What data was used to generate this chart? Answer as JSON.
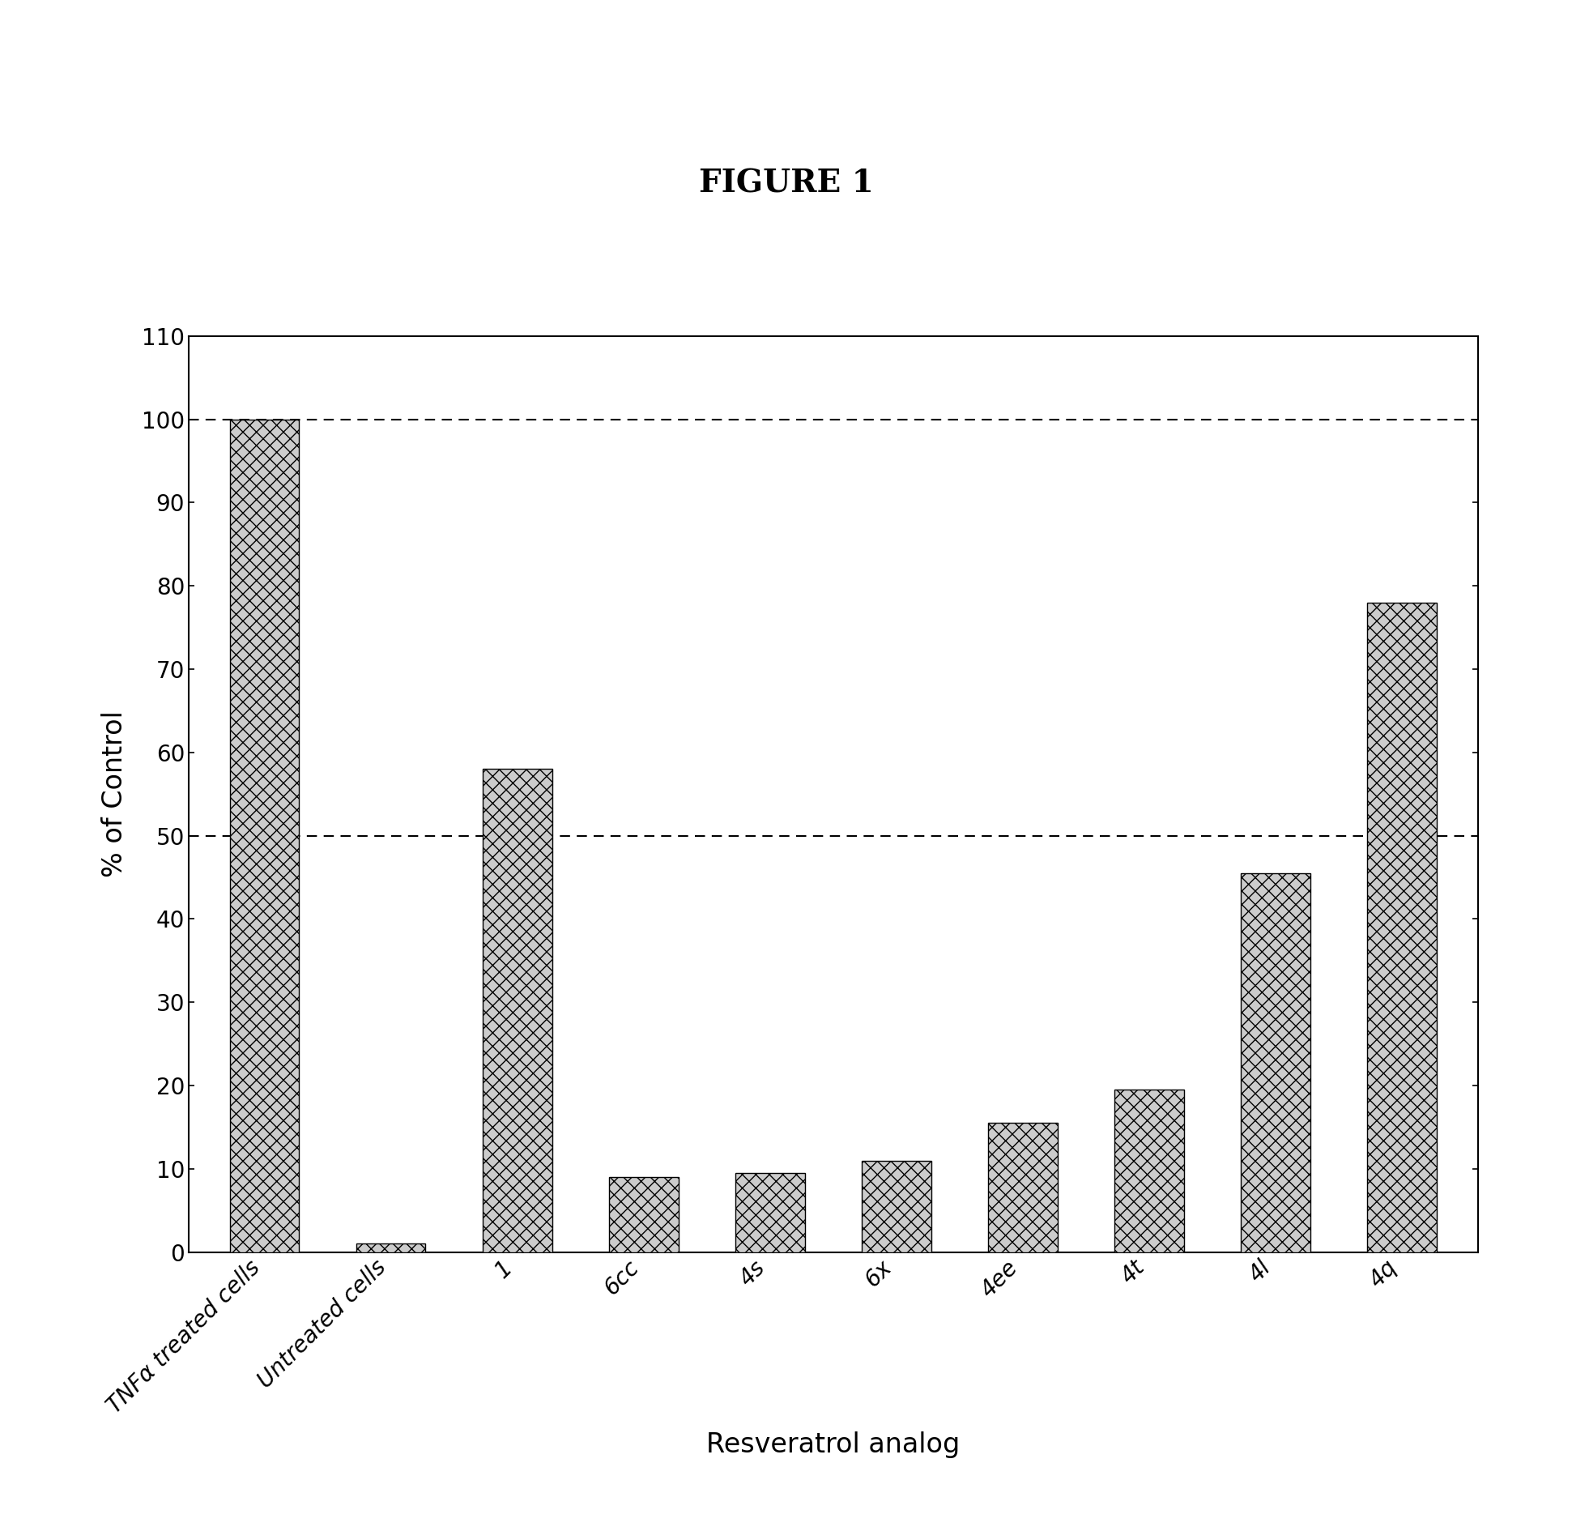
{
  "title": "FIGURE 1",
  "categories": [
    "TNFα treated cells",
    "Untreated cells",
    "1",
    "6cc",
    "4s",
    "6x",
    "4ee",
    "4t",
    "4l",
    "4q"
  ],
  "values": [
    100,
    1,
    58,
    9,
    9.5,
    11,
    15.5,
    19.5,
    45.5,
    78
  ],
  "ylabel": "% of Control",
  "xlabel": "Resveratrol analog",
  "ylim": [
    0,
    110
  ],
  "yticks": [
    0,
    10,
    20,
    30,
    40,
    50,
    60,
    70,
    80,
    90,
    100,
    110
  ],
  "dashed_lines": [
    100,
    50
  ],
  "background_color": "#ffffff",
  "bar_edge_color": "#000000",
  "title_fontsize": 28,
  "axis_label_fontsize": 24,
  "tick_fontsize": 20
}
